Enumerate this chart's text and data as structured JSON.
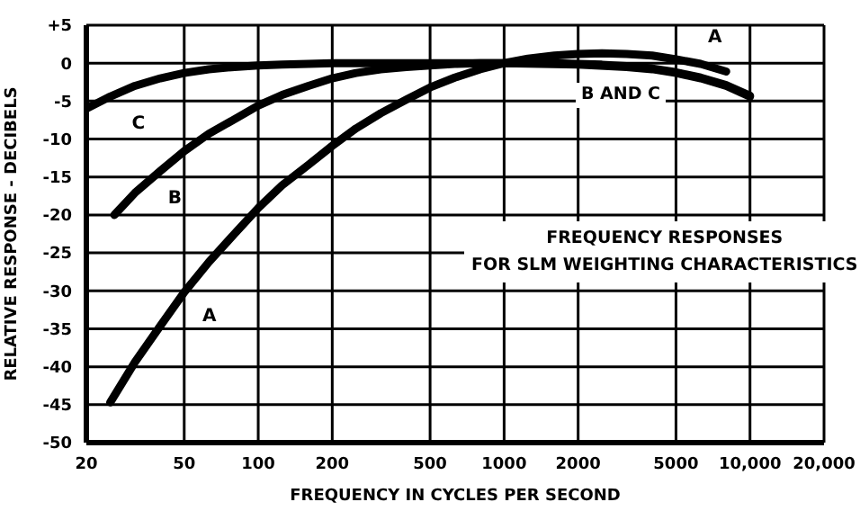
{
  "chart_data": {
    "type": "line",
    "title": "FREQUENCY RESPONSES",
    "subtitle": "FOR SLM WEIGHTING CHARACTERISTICS",
    "xlabel": "FREQUENCY IN CYCLES PER SECOND",
    "ylabel": "RELATIVE RESPONSE - DECIBELS",
    "log": "x",
    "grid": true,
    "legend": false,
    "marker": "none",
    "line_style": "solid",
    "xlim": [
      20,
      20000
    ],
    "xticks": [
      20,
      50,
      100,
      200,
      500,
      1000,
      2000,
      5000,
      {
        "value": 10000,
        "label": "10,000"
      },
      {
        "value": 20000,
        "label": "20,000"
      }
    ],
    "ylim": [
      -50,
      5
    ],
    "yticks": [
      -50,
      -45,
      -40,
      -35,
      -30,
      -25,
      -20,
      -15,
      -10,
      -5,
      0,
      {
        "value": 5,
        "label": "+5"
      }
    ],
    "series": [
      {
        "name": "A",
        "color": "#000000",
        "x": [
          25,
          31.5,
          40,
          50,
          63,
          80,
          100,
          125,
          160,
          200,
          250,
          315,
          400,
          500,
          630,
          800,
          1000,
          1250,
          1600,
          2000,
          2500,
          3150,
          4000,
          5000,
          6300,
          8000
        ],
        "values": [
          -44.7,
          -39.4,
          -34.6,
          -30.2,
          -26.2,
          -22.5,
          -19.1,
          -16.1,
          -13.4,
          -10.9,
          -8.6,
          -6.6,
          -4.8,
          -3.2,
          -1.9,
          -0.8,
          0,
          0.6,
          1,
          1.2,
          1.3,
          1.2,
          1,
          0.5,
          -0.1,
          -1.1
        ]
      },
      {
        "name": "B",
        "color": "#000000",
        "x": [
          26,
          31.5,
          40,
          50,
          63,
          80,
          100,
          125,
          160,
          200,
          250,
          315,
          400,
          500,
          630,
          800,
          1000,
          1250,
          1600,
          2000,
          2500,
          3150,
          4000,
          5000,
          6300,
          8000,
          10000
        ],
        "values": [
          -20,
          -17.1,
          -14.2,
          -11.6,
          -9.3,
          -7.4,
          -5.6,
          -4.2,
          -3,
          -2,
          -1.3,
          -0.8,
          -0.5,
          -0.3,
          -0.1,
          0,
          0,
          0,
          0,
          -0.1,
          -0.2,
          -0.4,
          -0.7,
          -1.2,
          -1.9,
          -2.9,
          -4.3
        ]
      },
      {
        "name": "C",
        "color": "#000000",
        "x": [
          20,
          25,
          31.5,
          40,
          50,
          63,
          80,
          100,
          125,
          160,
          200,
          500,
          1000,
          2000,
          3150,
          4000,
          5000,
          6300,
          8000,
          10000
        ],
        "values": [
          -6,
          -4.4,
          -3,
          -2,
          -1.3,
          -0.8,
          -0.5,
          -0.3,
          -0.2,
          -0.1,
          0,
          0,
          0,
          -0.2,
          -0.5,
          -0.8,
          -1.3,
          -2,
          -3,
          -4.4
        ]
      }
    ],
    "annotations": [
      "B AND C"
    ]
  }
}
